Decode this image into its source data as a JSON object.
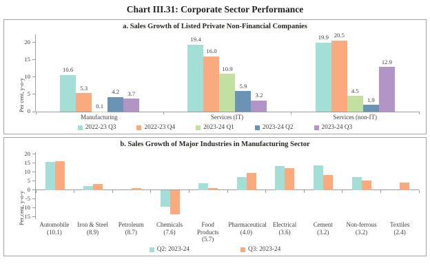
{
  "page_title": "Chart III.31: Corporate Sector Performance",
  "chart_data": [
    {
      "type": "bar",
      "title": "a. Sales Growth of Listed Private Non-Financial Companies",
      "ylabel": "Per cent, y-o-y",
      "ylim": [
        0,
        20
      ],
      "yticks": [
        0,
        5,
        10,
        15,
        20
      ],
      "grid": false,
      "legend_position": "bottom",
      "data_labels": true,
      "categories": [
        "Manufacturing",
        "Services (IT)",
        "Services (non-IT)"
      ],
      "series": [
        {
          "name": "2022-23 Q3",
          "color": "#a4dfd7",
          "values": [
            10.6,
            19.4,
            19.9
          ]
        },
        {
          "name": "2022-23 Q4",
          "color": "#f9aa7f",
          "values": [
            5.3,
            16.0,
            20.5
          ]
        },
        {
          "name": "2023-24 Q1",
          "color": "#c2e0a2",
          "values": [
            0.1,
            10.9,
            4.5
          ]
        },
        {
          "name": "2023-24 Q2",
          "color": "#6b93b5",
          "values": [
            4.2,
            5.9,
            1.9
          ]
        },
        {
          "name": "2023-24 Q3",
          "color": "#b394c7",
          "values": [
            3.7,
            3.2,
            12.9
          ]
        }
      ]
    },
    {
      "type": "bar",
      "title": "b. Sales Growth of Major Industries in Manufacturing Sector",
      "ylabel": "Per cent, y-o-y",
      "ylim": [
        -15,
        20
      ],
      "yticks": [
        -15,
        -10,
        -5,
        0,
        5,
        10,
        15,
        20
      ],
      "grid": false,
      "legend_position": "bottom",
      "data_labels": false,
      "categories": [
        {
          "label": "Automobile",
          "weight": "(10.1)"
        },
        {
          "label": "Iron & Steel",
          "weight": "(8.9)"
        },
        {
          "label": "Petroleum",
          "weight": "(8.7)"
        },
        {
          "label": "Chemicals",
          "weight": "(7.6)"
        },
        {
          "label": "Food Products",
          "weight": "(5.7)"
        },
        {
          "label": "Pharmaceutical",
          "weight": "(4.0)"
        },
        {
          "label": "Electrical",
          "weight": "(3.6)"
        },
        {
          "label": "Cement",
          "weight": "(3.2)"
        },
        {
          "label": "Non-ferrous",
          "weight": "(3.2)"
        },
        {
          "label": "Textiles",
          "weight": "(2.4)"
        }
      ],
      "series": [
        {
          "name": "Q2: 2023-24",
          "color": "#a4dfd7",
          "values": [
            15.9,
            2.3,
            0.0,
            -9.5,
            3.7,
            7.2,
            13.6,
            13.9,
            7.4,
            0.0
          ]
        },
        {
          "name": "Q3: 2023-24",
          "color": "#f9aa7f",
          "values": [
            16.0,
            3.5,
            1.2,
            -13.5,
            0.9,
            9.5,
            12.2,
            8.2,
            5.3,
            4.0
          ]
        }
      ]
    }
  ]
}
